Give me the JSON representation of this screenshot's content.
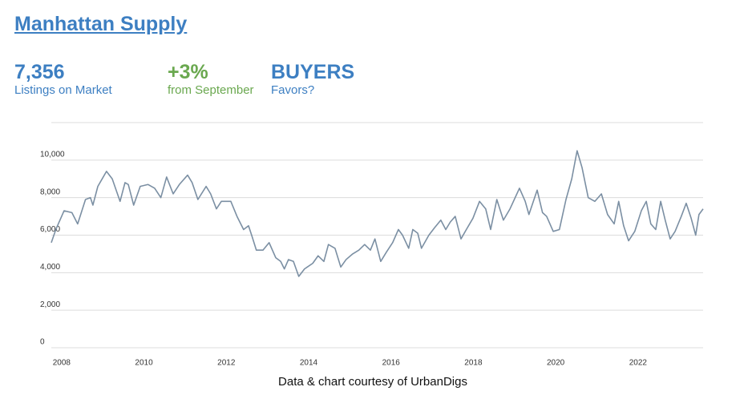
{
  "header": {
    "title": "Manhattan Supply",
    "stats": [
      {
        "value": "7,356",
        "label": "Listings on Market",
        "color": "#3d7fc2"
      },
      {
        "value": "+3%",
        "label": "from September",
        "color": "#6aa84f"
      },
      {
        "value": "BUYERS",
        "label": "Favors?",
        "color": "#3d7fc2"
      }
    ]
  },
  "chart_data": {
    "type": "line",
    "color": "#7b8fa3",
    "grid": true,
    "x": [
      2007.75,
      2007.86,
      2008.06,
      2008.25,
      2008.39,
      2008.58,
      2008.7,
      2008.76,
      2008.88,
      2009.09,
      2009.23,
      2009.42,
      2009.54,
      2009.62,
      2009.75,
      2009.91,
      2010.1,
      2010.26,
      2010.41,
      2010.55,
      2010.71,
      2010.86,
      2011.06,
      2011.17,
      2011.31,
      2011.51,
      2011.62,
      2011.76,
      2011.88,
      2012.11,
      2012.26,
      2012.42,
      2012.54,
      2012.63,
      2012.73,
      2012.89,
      2013.04,
      2013.2,
      2013.32,
      2013.41,
      2013.51,
      2013.63,
      2013.76,
      2013.9,
      2014.1,
      2014.23,
      2014.37,
      2014.48,
      2014.64,
      2014.78,
      2014.91,
      2015.07,
      2015.22,
      2015.36,
      2015.5,
      2015.61,
      2015.75,
      2015.89,
      2016.04,
      2016.18,
      2016.28,
      2016.43,
      2016.53,
      2016.65,
      2016.74,
      2016.92,
      2017.06,
      2017.21,
      2017.33,
      2017.44,
      2017.56,
      2017.7,
      2017.83,
      2017.99,
      2018.15,
      2018.3,
      2018.42,
      2018.57,
      2018.73,
      2018.89,
      2019.12,
      2019.26,
      2019.35,
      2019.55,
      2019.68,
      2019.78,
      2019.94,
      2020.09,
      2020.25,
      2020.39,
      2020.52,
      2020.64,
      2020.79,
      2020.95,
      2021.11,
      2021.26,
      2021.42,
      2021.53,
      2021.65,
      2021.77,
      2021.92,
      2022.08,
      2022.2,
      2022.31,
      2022.43,
      2022.55,
      2022.66,
      2022.78,
      2022.9,
      2023.05,
      2023.17,
      2023.29,
      2023.4,
      2023.48,
      2023.58
    ],
    "values": [
      5600,
      6300,
      7300,
      7200,
      6600,
      7900,
      8000,
      7600,
      8600,
      9400,
      9000,
      7800,
      8800,
      8700,
      7600,
      8600,
      8700,
      8500,
      8000,
      9100,
      8200,
      8700,
      9200,
      8800,
      7900,
      8600,
      8200,
      7400,
      7800,
      7800,
      7000,
      6300,
      6500,
      5900,
      5200,
      5200,
      5600,
      4800,
      4600,
      4200,
      4700,
      4600,
      3800,
      4200,
      4500,
      4900,
      4600,
      5500,
      5300,
      4300,
      4700,
      5000,
      5200,
      5500,
      5200,
      5800,
      4600,
      5100,
      5600,
      6300,
      6000,
      5300,
      6300,
      6100,
      5300,
      6000,
      6400,
      6800,
      6300,
      6700,
      7000,
      5800,
      6300,
      6900,
      7800,
      7400,
      6300,
      7900,
      6800,
      7400,
      8500,
      7800,
      7100,
      8400,
      7200,
      7000,
      6200,
      6300,
      7900,
      9000,
      10500,
      9600,
      8000,
      7800,
      8200,
      7100,
      6600,
      7800,
      6500,
      5700,
      6200,
      7300,
      7800,
      6600,
      6300,
      7800,
      6800,
      5800,
      6200,
      7000,
      7700,
      6900,
      6000,
      7100,
      7400
    ],
    "xlim": [
      2007.75,
      2023.58
    ],
    "xticks": [
      2008,
      2010,
      2012,
      2014,
      2016,
      2018,
      2020,
      2022
    ],
    "ylim": [
      0,
      12000
    ],
    "yticks": [
      0,
      {
        "value": 2000,
        "label": "2,000"
      },
      {
        "value": 4000,
        "label": "4,000"
      },
      {
        "value": 6000,
        "label": "6,000"
      },
      {
        "value": 8000,
        "label": "8,000"
      },
      {
        "value": 10000,
        "label": "10,000"
      },
      {
        "value": 12000,
        "label": ""
      }
    ],
    "source": "Data & chart courtesy of UrbanDigs"
  }
}
